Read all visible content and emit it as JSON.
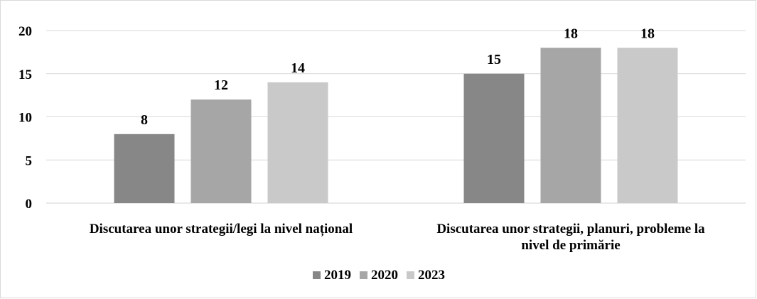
{
  "chart_data": {
    "type": "bar",
    "title": "",
    "xlabel": "",
    "ylabel": "",
    "ylim": [
      0,
      20
    ],
    "yticks": [
      0,
      5,
      10,
      15,
      20
    ],
    "grid": true,
    "legend_position": "bottom",
    "categories": [
      [
        "Discutarea unor strategii/legi la nivel național"
      ],
      [
        "Discutarea unor strategii, planuri, probleme la",
        "nivel de primărie"
      ]
    ],
    "series": [
      {
        "name": "2019",
        "color": "#878787",
        "values": [
          8,
          15
        ]
      },
      {
        "name": "2020",
        "color": "#a6a6a6",
        "values": [
          12,
          18
        ]
      },
      {
        "name": "2023",
        "color": "#c9c9c9",
        "values": [
          14,
          18
        ]
      }
    ]
  }
}
